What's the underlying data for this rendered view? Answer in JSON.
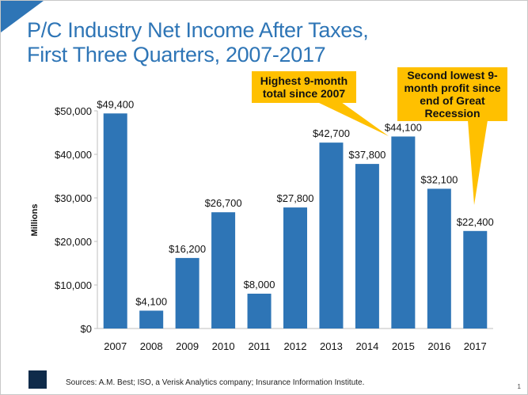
{
  "header": {
    "title_line1": "P/C Industry Net Income After Taxes,",
    "title_line2": "First Three Quarters, 2007-2017"
  },
  "callouts": [
    "Highest 9-month total since 2007",
    "Second lowest 9-month profit since end of Great Recession"
  ],
  "footer": {
    "sources": "Sources: A.M. Best; ISO, a Verisk Analytics company; Insurance Information Institute.",
    "page": "1",
    "logo_text": "iii"
  },
  "colors": {
    "bar": "#2e75b6",
    "callout": "#ffc000",
    "title": "#2e75b6"
  },
  "chart_data": {
    "type": "bar",
    "title": "P/C Industry Net Income After Taxes, First Three Quarters, 2007-2017",
    "categories": [
      "2007",
      "2008",
      "2009",
      "2010",
      "2011",
      "2012",
      "2013",
      "2014",
      "2015",
      "2016",
      "2017"
    ],
    "values": [
      49400,
      4100,
      16200,
      26700,
      8000,
      27800,
      42700,
      37800,
      44100,
      32100,
      22400
    ],
    "labels": [
      "$49,400",
      "$4,100",
      "$16,200",
      "$26,700",
      "$8,000",
      "$27,800",
      "$42,700",
      "$37,800",
      "$44,100",
      "$32,100",
      "$22,400"
    ],
    "ylabel": "Millions",
    "xlabel": "",
    "ylim": [
      0,
      50000
    ],
    "yticks": [
      0,
      10000,
      20000,
      30000,
      40000,
      50000
    ],
    "ytick_labels": [
      "$0",
      "$10,000",
      "$20,000",
      "$30,000",
      "$40,000",
      "$50,000"
    ],
    "grid": false
  }
}
